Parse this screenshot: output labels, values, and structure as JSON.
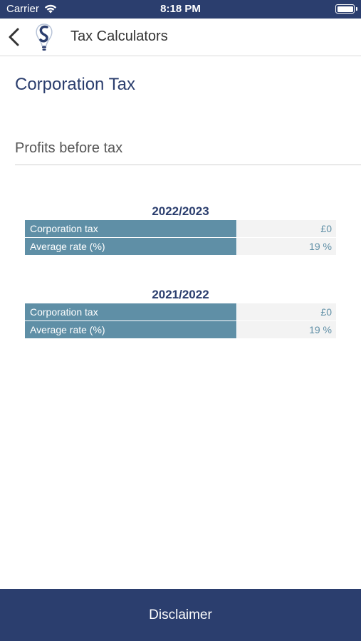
{
  "status_bar": {
    "carrier": "Carrier",
    "time": "8:18 PM"
  },
  "nav": {
    "title": "Tax Calculators"
  },
  "page": {
    "title": "Corporation Tax"
  },
  "input": {
    "placeholder": "Profits before tax",
    "value": ""
  },
  "years": [
    {
      "label": "2022/2023",
      "rows": [
        {
          "label": "Corporation tax",
          "value": "£0"
        },
        {
          "label": "Average rate (%)",
          "value": "19 %"
        }
      ]
    },
    {
      "label": "2021/2022",
      "rows": [
        {
          "label": "Corporation tax",
          "value": "£0"
        },
        {
          "label": "Average rate (%)",
          "value": "19 %"
        }
      ]
    }
  ],
  "footer": {
    "disclaimer_label": "Disclaimer"
  },
  "colors": {
    "brand": "#2b3e6e",
    "accent": "#5f8fa6",
    "value_bg": "#f3f3f3"
  },
  "icons": {
    "back": "chevron-left-icon",
    "logo": "logo-icon",
    "wifi": "wifi-icon",
    "battery": "battery-icon"
  }
}
